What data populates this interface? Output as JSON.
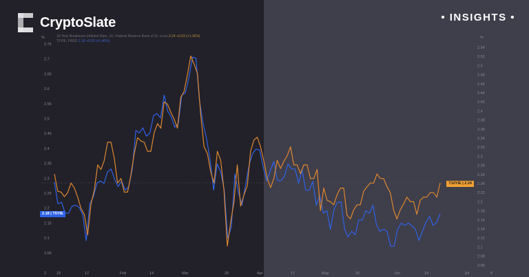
{
  "brand": {
    "name": "CryptoSlate",
    "section": "• INSIGHTS •"
  },
  "legend": {
    "series_1": {
      "label": "10-Year Breakeven Inflation Rate, 1D, Federal Reserve Bank of St. Louis",
      "value": "2.24 +0.03 (+1.36%)"
    },
    "series_2": {
      "label": "T5YIE, FRED",
      "value": "2.18 +0.03 (+1.40%)"
    }
  },
  "colors": {
    "orange": "#e0882f",
    "blue": "#2f63e8",
    "bg_left": "#222129",
    "bg_right": "#3f3e4b"
  },
  "badges": {
    "left": {
      "value": "2.18",
      "name": "T5YIE"
    },
    "right": {
      "name": "T10YIE",
      "value": "2.24"
    }
  },
  "chart_data": {
    "type": "line",
    "left_axis": {
      "unit": "%",
      "ylim": [
        2.0,
        2.75
      ],
      "ticks": [
        "2.75",
        "2.7",
        "2.65",
        "2.6",
        "2.55",
        "2.5",
        "2.45",
        "2.4",
        "2.35",
        "2.3",
        "2.25",
        "2.2",
        "2.15",
        "2.1",
        "2.05",
        "2"
      ]
    },
    "right_axis": {
      "unit": "%",
      "ylim": [
        2.06,
        2.54
      ],
      "ticks": [
        "2.54",
        "2.52",
        "2.5",
        "2.48",
        "2.46",
        "2.44",
        "2.42",
        "2.4",
        "2.38",
        "2.36",
        "2.34",
        "2.32",
        "2.3",
        "2.28",
        "2.26",
        "2.24",
        "2.22",
        "2.2",
        "2.18",
        "2.16",
        "2.14",
        "2.12",
        "2.1",
        "2.08",
        "2.06"
      ]
    },
    "x_ticks": [
      "23",
      "17",
      "Feb",
      "14",
      "Mar",
      "20",
      "Apr",
      "17",
      "May",
      "15",
      "Jun",
      "14",
      "Jul",
      "8"
    ],
    "grid": false,
    "series": [
      {
        "name": "T5YIE",
        "axis": "left",
        "color": "#2f63e8",
        "values": [
          2.287,
          2.214,
          2.22,
          2.183,
          2.183,
          2.206,
          2.21,
          2.202,
          2.179,
          2.091,
          2.214,
          2.237,
          2.283,
          2.291,
          2.283,
          2.321,
          2.331,
          2.298,
          2.272,
          2.291,
          2.26,
          2.272,
          2.329,
          2.46,
          2.452,
          2.469,
          2.441,
          2.452,
          2.51,
          2.517,
          2.502,
          2.579,
          2.525,
          2.506,
          2.471,
          2.483,
          2.579,
          2.586,
          2.636,
          2.706,
          2.702,
          2.56,
          2.483,
          2.433,
          2.36,
          2.26,
          2.348,
          2.321,
          2.26,
          2.099,
          2.137,
          2.314,
          2.252,
          2.21,
          2.275,
          2.344,
          2.383,
          2.398,
          2.394,
          2.337,
          2.291,
          2.325,
          2.356,
          2.292,
          2.292,
          2.306,
          2.348,
          2.331,
          2.331,
          2.283,
          2.329,
          2.26,
          2.26,
          2.289,
          2.21,
          2.241,
          2.183,
          2.191,
          2.129,
          2.195,
          2.22,
          2.22,
          2.129,
          2.103,
          2.122,
          2.11,
          2.16,
          2.16,
          2.191,
          2.183,
          2.21,
          2.145,
          2.122,
          2.129,
          2.122,
          2.072,
          2.072,
          2.129,
          2.149,
          2.141,
          2.15,
          2.141,
          2.129,
          2.091,
          2.122,
          2.152,
          2.172,
          2.142,
          2.152,
          2.181
        ]
      },
      {
        "name": "T10YIE",
        "axis": "right",
        "color": "#e0882f",
        "values": [
          2.261,
          2.223,
          2.221,
          2.211,
          2.22,
          2.241,
          2.23,
          2.21,
          2.185,
          2.172,
          2.127,
          2.195,
          2.225,
          2.281,
          2.271,
          2.291,
          2.331,
          2.331,
          2.296,
          2.241,
          2.251,
          2.221,
          2.221,
          2.258,
          2.306,
          2.341,
          2.334,
          2.331,
          2.311,
          2.311,
          2.352,
          2.372,
          2.362,
          2.42,
          2.415,
          2.397,
          2.382,
          2.362,
          2.43,
          2.443,
          2.48,
          2.521,
          2.503,
          2.483,
          2.392,
          2.321,
          2.306,
          2.266,
          2.241,
          2.311,
          2.291,
          2.225,
          2.102,
          2.155,
          2.2,
          2.281,
          2.19,
          2.215,
          2.235,
          2.311,
          2.336,
          2.342,
          2.321,
          2.289,
          2.251,
          2.231,
          2.251,
          2.291,
          2.273,
          2.289,
          2.301,
          2.321,
          2.281,
          2.281,
          2.262,
          2.281,
          2.281,
          2.251,
          2.251,
          2.271,
          2.18,
          2.23,
          2.203,
          2.2,
          2.193,
          2.215,
          2.23,
          2.23,
          2.17,
          2.162,
          2.182,
          2.193,
          2.193,
          2.223,
          2.233,
          2.241,
          2.241,
          2.261,
          2.251,
          2.251,
          2.233,
          2.22,
          2.182,
          2.162,
          2.182,
          2.195,
          2.21,
          2.2,
          2.2,
          2.172,
          2.203,
          2.21,
          2.21,
          2.22,
          2.22,
          2.21,
          2.241
        ]
      }
    ]
  }
}
